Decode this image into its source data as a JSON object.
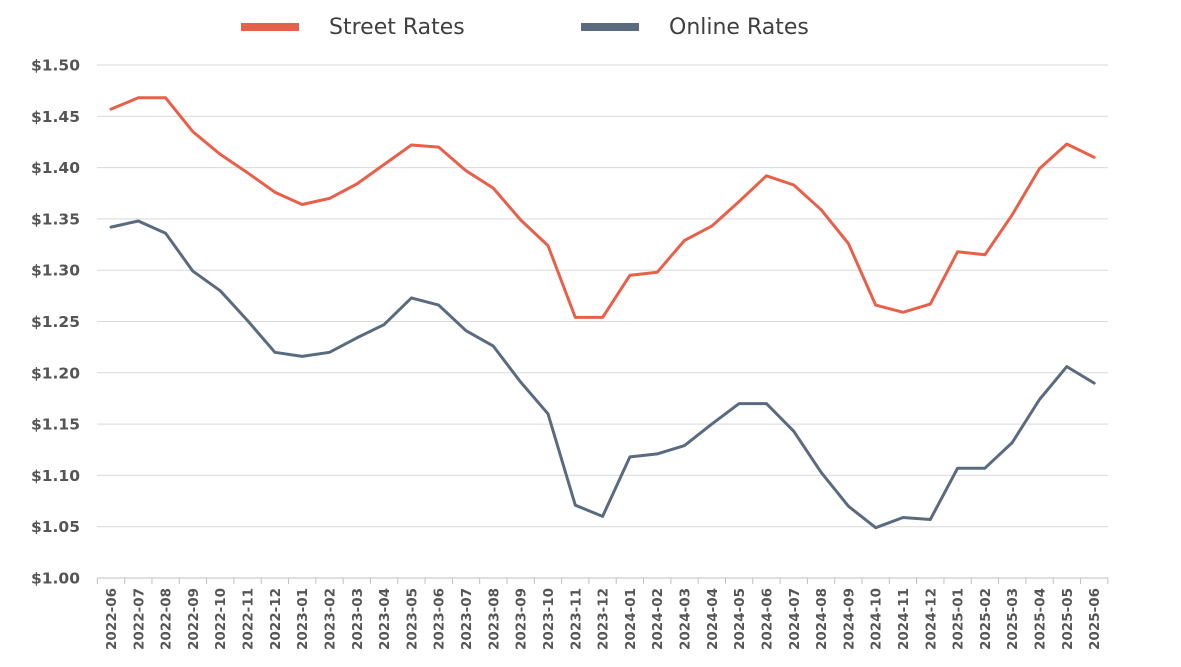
{
  "chart_data": {
    "type": "line",
    "title": "",
    "xlabel": "",
    "ylabel": "",
    "ylim": [
      1.0,
      1.5
    ],
    "y_ticks": [
      "$1.00",
      "$1.05",
      "$1.10",
      "$1.15",
      "$1.20",
      "$1.25",
      "$1.30",
      "$1.35",
      "$1.40",
      "$1.45",
      "$1.50"
    ],
    "grid": true,
    "legend_position": "top",
    "categories": [
      "2022-06",
      "2022-07",
      "2022-08",
      "2022-09",
      "2022-10",
      "2022-11",
      "2022-12",
      "2023-01",
      "2023-02",
      "2023-03",
      "2023-04",
      "2023-05",
      "2023-06",
      "2023-07",
      "2023-08",
      "2023-09",
      "2023-10",
      "2023-11",
      "2023-12",
      "2024-01",
      "2024-02",
      "2024-03",
      "2024-04",
      "2024-05",
      "2024-06",
      "2024-07",
      "2024-08",
      "2024-09",
      "2024-10",
      "2024-11",
      "2024-12",
      "2025-01",
      "2025-02",
      "2025-03",
      "2025-04",
      "2025-05",
      "2025-06"
    ],
    "series": [
      {
        "name": "Street Rates",
        "color": "#e8604a",
        "values": [
          1.457,
          1.468,
          1.468,
          1.435,
          1.413,
          1.395,
          1.376,
          1.364,
          1.37,
          1.384,
          1.403,
          1.422,
          1.42,
          1.397,
          1.38,
          1.349,
          1.324,
          1.254,
          1.254,
          1.295,
          1.298,
          1.329,
          1.343,
          1.367,
          1.392,
          1.383,
          1.359,
          1.326,
          1.266,
          1.259,
          1.267,
          1.318,
          1.315,
          1.354,
          1.399,
          1.423,
          1.41
        ]
      },
      {
        "name": "Online Rates",
        "color": "#5a6b80",
        "values": [
          1.342,
          1.348,
          1.336,
          1.299,
          1.28,
          1.251,
          1.22,
          1.216,
          1.22,
          1.234,
          1.247,
          1.273,
          1.266,
          1.241,
          1.226,
          1.191,
          1.16,
          1.071,
          1.06,
          1.118,
          1.121,
          1.129,
          1.15,
          1.17,
          1.17,
          1.143,
          1.103,
          1.07,
          1.049,
          1.059,
          1.057,
          1.107,
          1.107,
          1.132,
          1.174,
          1.206,
          1.19
        ]
      }
    ]
  }
}
